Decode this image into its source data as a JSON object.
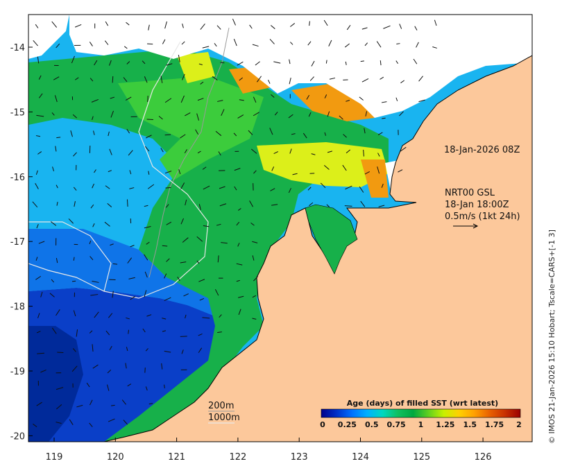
{
  "map": {
    "annotations": {
      "pass_time": "18-Jan-2026 08Z",
      "current_source": "NRT00 GSL",
      "current_time": "18-Jan 18:00Z",
      "current_scale": "0.5m/s (1kt 24h)",
      "isobath_200": "200m",
      "isobath_1000": "1000m"
    },
    "colorbar": {
      "title": "Age (days) of filled SST (wrt latest)",
      "tick_labels": [
        "0",
        "0.25",
        "0.5",
        "0.75",
        "1",
        "1.25",
        "1.5",
        "1.75",
        "2"
      ],
      "colors": [
        "#00008b",
        "#0030c8",
        "#0070ff",
        "#00b0ff",
        "#00d8c0",
        "#10c060",
        "#00a840",
        "#60d020",
        "#c8f000",
        "#ffd000",
        "#ffa000",
        "#e86000",
        "#c83000",
        "#9a0000"
      ]
    },
    "credit": "© IMOS 21-Jan-2026 15:10 Hobart; Tscale=CARS+[-1 3]",
    "x_axis": {
      "tick_labels": [
        "119",
        "120",
        "121",
        "122",
        "123",
        "124",
        "125",
        "126"
      ]
    },
    "y_axis": {
      "tick_labels": [
        "-14",
        "-15",
        "-16",
        "-17",
        "-18",
        "-19",
        "-20"
      ]
    },
    "colors": {
      "land": "#fcc89b",
      "cloud": "#ffffff",
      "deep_blue": "#0a3fc8",
      "mid_blue": "#0f74e8",
      "sky_blue": "#19b4f0",
      "green": "#17b04a",
      "light_green": "#3ccc3c",
      "yellow": "#dcef1a",
      "orange": "#f29a10",
      "dark_orange": "#dc6a00",
      "red": "#a80000"
    }
  }
}
